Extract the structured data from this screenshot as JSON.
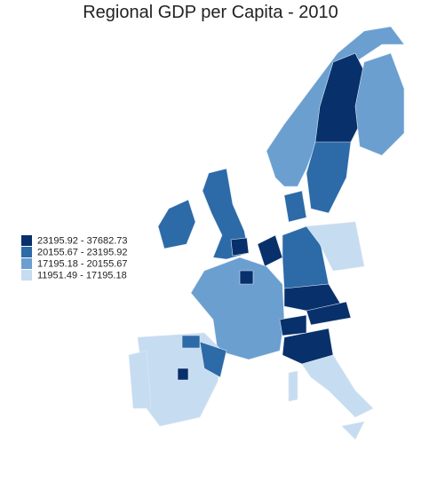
{
  "title": "Regional GDP per Capita - 2010",
  "legend": [
    {
      "label": "23195.92 - 37682.73",
      "color": "#08306b"
    },
    {
      "label": "20155.67 - 23195.92",
      "color": "#2c6aa8"
    },
    {
      "label": "17195.18 - 20155.67",
      "color": "#6a9fd0"
    },
    {
      "label": "11951.49 - 17195.18",
      "color": "#c6dcf1"
    }
  ]
}
